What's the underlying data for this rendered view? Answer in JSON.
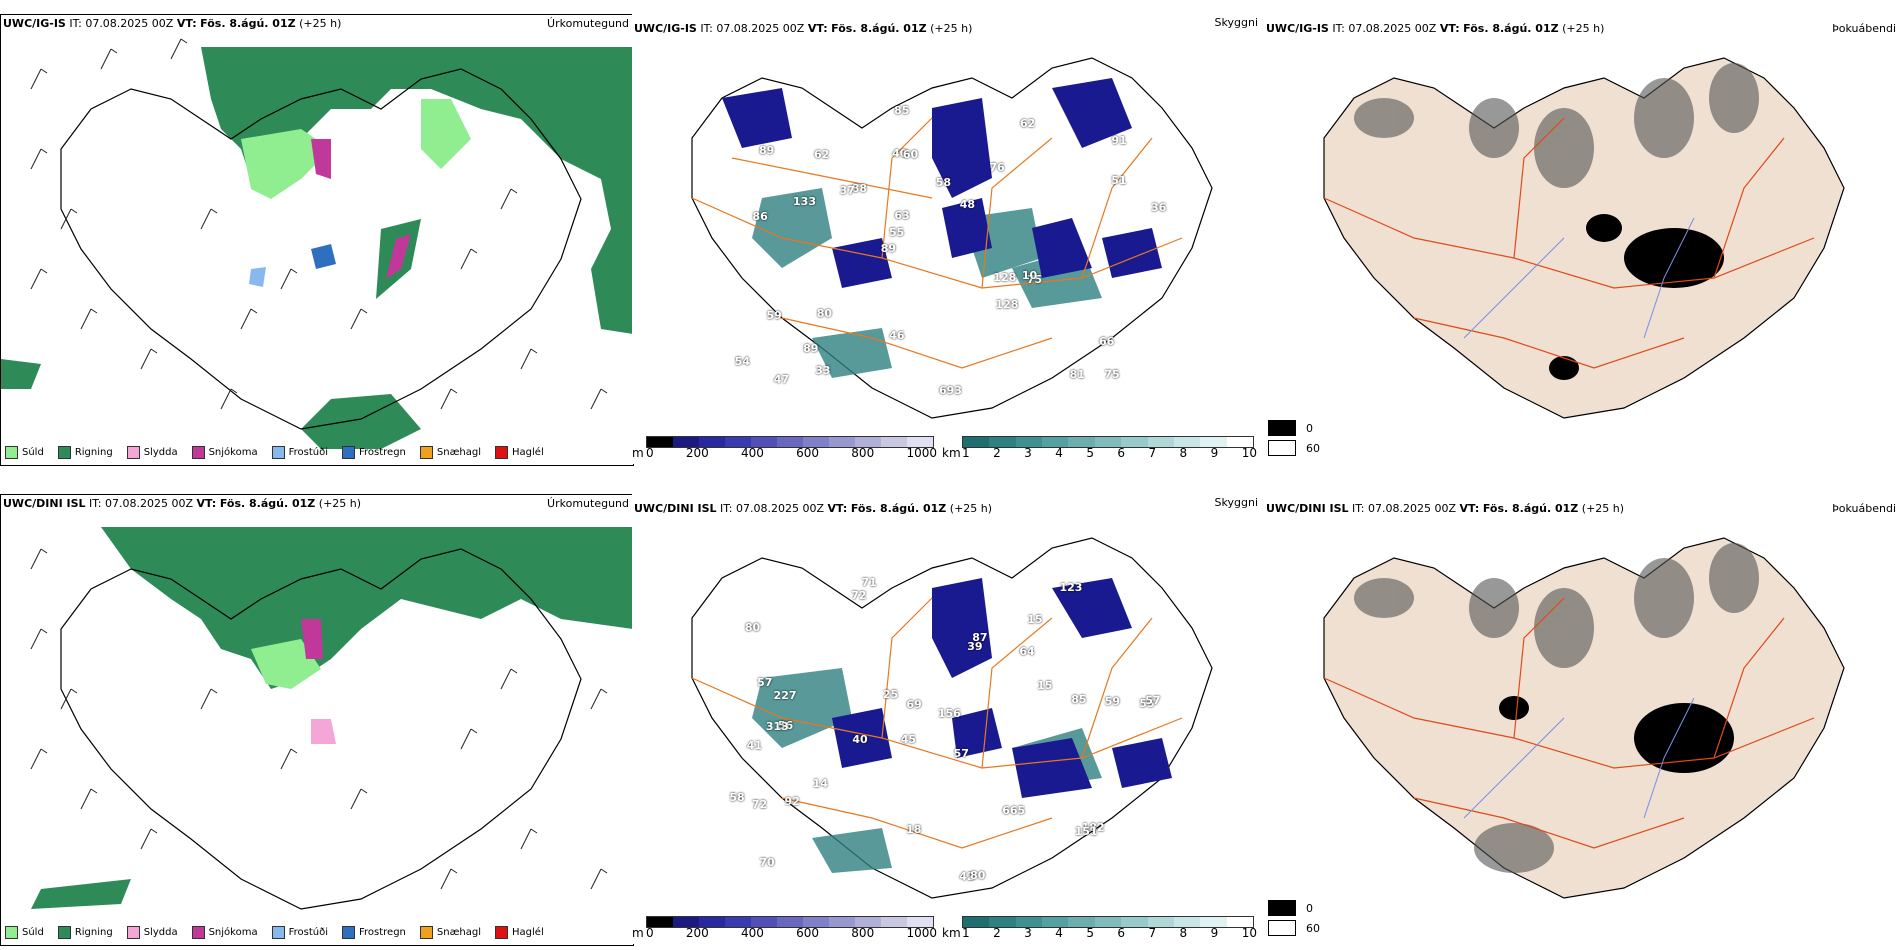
{
  "row1": {
    "left": {
      "model": "UWC/IG-IS",
      "it": "IT: 07.08.2025 00Z",
      "vt_label": "VT:",
      "vt": "Fös. 8.ágú. 01Z",
      "lead": "(+25 h)",
      "right_title": "Úrkomutegund"
    },
    "middle": {
      "model": "UWC/IG-IS",
      "it": "IT: 07.08.2025 00Z",
      "vt_label": "VT:",
      "vt": "Fös. 8.ágú. 01Z",
      "lead": "(+25 h)",
      "right_title": "Skyggni",
      "labels": [
        "75",
        "86",
        "91",
        "89",
        "76",
        "47",
        "40",
        "58",
        "59",
        "88",
        "54",
        "89",
        "60",
        "48",
        "75",
        "89",
        "85",
        "36",
        "128",
        "51",
        "55",
        "46",
        "63",
        "62",
        "62",
        "80",
        "81",
        "66",
        "10",
        "693",
        "37",
        "133",
        "128",
        "33"
      ]
    },
    "right": {
      "model": "UWC/IG-IS",
      "it": "IT: 07.08.2025 00Z",
      "vt_label": "VT:",
      "vt": "Fös. 8.ágú. 01Z",
      "lead": "(+25 h)",
      "right_title": "Þokuábendi"
    }
  },
  "row2": {
    "left": {
      "model": "UWC/DINI ISL",
      "it": "IT: 07.08.2025 00Z",
      "vt_label": "VT:",
      "vt": "Fös. 8.ágú. 01Z",
      "lead": "(+25 h)",
      "right_title": "Úrkomutegund"
    },
    "middle": {
      "model": "UWC/DINI ISL",
      "it": "IT: 07.08.2025 00Z",
      "vt_label": "VT:",
      "vt": "Fös. 8.ágú. 01Z",
      "lead": "(+25 h)",
      "right_title": "Skyggni",
      "labels": [
        "71",
        "15",
        "55",
        "45",
        "57",
        "56",
        "80",
        "64",
        "41",
        "39",
        "156",
        "70",
        "72",
        "40",
        "42",
        "80",
        "18",
        "123",
        "15",
        "14",
        "227",
        "313",
        "57",
        "59",
        "58",
        "57",
        "69",
        "85",
        "182",
        "72",
        "151",
        "87",
        "92",
        "25",
        "665"
      ]
    },
    "right": {
      "model": "UWC/DINI ISL",
      "it": "IT: 07.08.2025 00Z",
      "vt_label": "VT:",
      "vt": "Fös. 8.ágú. 01Z",
      "lead": "(+25 h)",
      "right_title": "Þokuábendi"
    }
  },
  "precip_legend": [
    {
      "label": "Súld",
      "color": "#90ee90"
    },
    {
      "label": "Rigning",
      "color": "#2e8b57"
    },
    {
      "label": "Slydda",
      "color": "#f4a6d7"
    },
    {
      "label": "Snjókoma",
      "color": "#c0399a"
    },
    {
      "label": "Frostúði",
      "color": "#87b9f0"
    },
    {
      "label": "Frostregn",
      "color": "#2f6fc0"
    },
    {
      "label": "Snæhagl",
      "color": "#f0a020"
    },
    {
      "label": "Haglél",
      "color": "#e01010"
    }
  ],
  "ceiling_bar": {
    "unit": "m",
    "ticks": [
      "0",
      "200",
      "400",
      "600",
      "800",
      "1000"
    ],
    "colors": [
      "#000000",
      "#1a1a80",
      "#2828a0",
      "#3a3ab0",
      "#5050b8",
      "#6868c0",
      "#8080c8",
      "#9898d0",
      "#b0b0d8",
      "#c8c8e0",
      "#e0e0f0"
    ]
  },
  "vis_bar": {
    "unit": "km",
    "ticks": [
      "1",
      "2",
      "3",
      "4",
      "5",
      "6",
      "7",
      "8",
      "9",
      "10"
    ],
    "colors": [
      "#1f6f6f",
      "#2f8080",
      "#3f9090",
      "#55a0a0",
      "#6aaeae",
      "#80bcbc",
      "#98caca",
      "#b0d8d8",
      "#c8e6e6",
      "#e0f2f2",
      "#ffffff"
    ]
  },
  "fog_legend": [
    {
      "label": "0",
      "color": "#000000"
    },
    {
      "label": "60",
      "color": "#ffffff"
    }
  ]
}
